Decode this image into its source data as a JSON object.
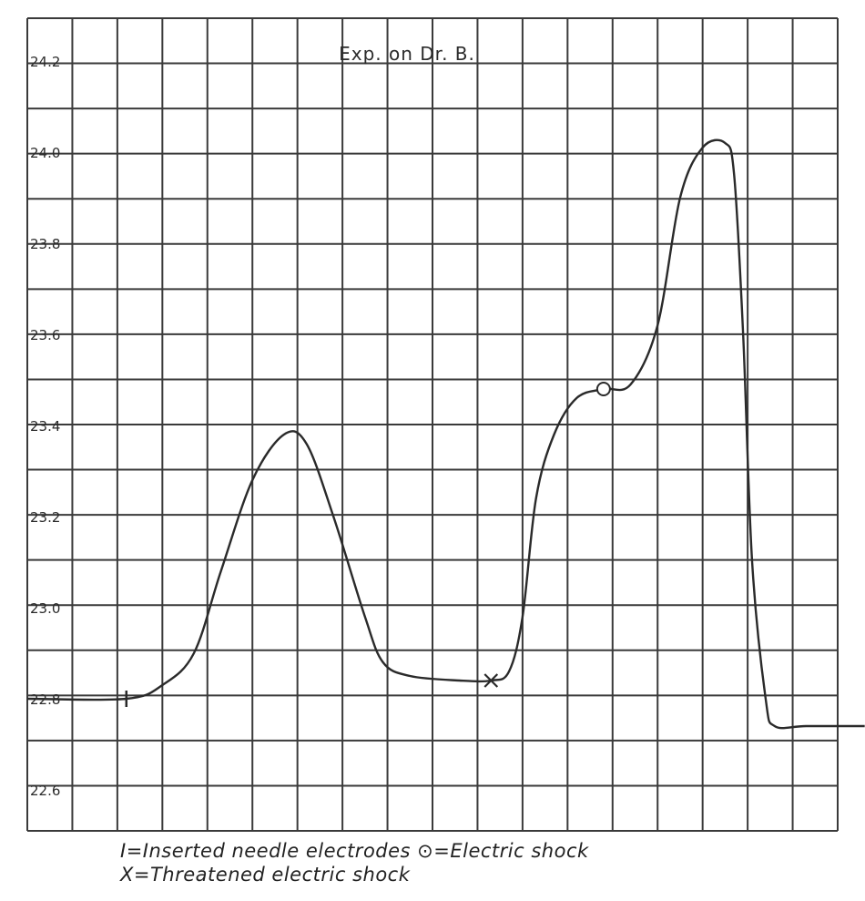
{
  "chart_data": {
    "type": "line",
    "title": "Exp. on Dr. B.",
    "xlabel": "",
    "ylabel": "",
    "ylim": [
      22.4,
      24.3
    ],
    "yticks": [
      "24.2",
      "24.0",
      "23.8",
      "23.6",
      "23.4",
      "23.2",
      "23.0",
      "22.8",
      "22.6"
    ],
    "grid": true,
    "x_unit_note": "x in grid divisions (unlabeled)",
    "series": [
      {
        "points": [
          [
            0.0,
            22.8
          ],
          [
            2.2,
            22.8
          ],
          [
            3.0,
            22.83
          ],
          [
            3.7,
            22.9
          ],
          [
            4.3,
            23.08
          ],
          [
            5.0,
            23.28
          ],
          [
            5.7,
            23.38
          ],
          [
            6.2,
            23.36
          ],
          [
            6.8,
            23.2
          ],
          [
            7.5,
            22.98
          ],
          [
            7.9,
            22.88
          ],
          [
            8.5,
            22.85
          ],
          [
            9.6,
            22.84
          ],
          [
            10.3,
            22.84
          ],
          [
            10.7,
            22.86
          ],
          [
            11.0,
            22.98
          ],
          [
            11.3,
            23.24
          ],
          [
            11.7,
            23.38
          ],
          [
            12.2,
            23.46
          ],
          [
            12.8,
            23.48
          ],
          [
            13.4,
            23.49
          ],
          [
            14.0,
            23.62
          ],
          [
            14.5,
            23.9
          ],
          [
            15.0,
            24.01
          ],
          [
            15.5,
            24.02
          ],
          [
            15.7,
            23.95
          ],
          [
            15.9,
            23.6
          ],
          [
            16.1,
            23.1
          ],
          [
            16.4,
            22.8
          ],
          [
            16.6,
            22.74
          ],
          [
            17.3,
            22.74
          ],
          [
            18.6,
            22.74
          ]
        ]
      }
    ],
    "markers": [
      {
        "symbol": "I",
        "x": 2.2,
        "y": 22.8
      },
      {
        "symbol": "X",
        "x": 10.3,
        "y": 22.84
      },
      {
        "symbol": "O",
        "x": 12.8,
        "y": 23.48
      }
    ]
  },
  "legend": {
    "line1": "I=Inserted needle electrodes   ⊙=Electric shock",
    "line2": "X=Threatened electric shock"
  },
  "colors": {
    "line": "#2a2a2a",
    "grid": "#3a3a3a"
  }
}
